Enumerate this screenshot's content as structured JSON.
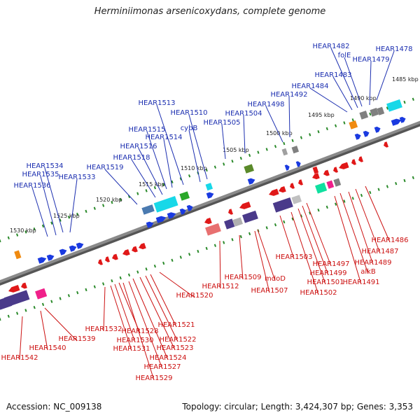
{
  "title": "Herminiimonas arsenicoxydans, complete genome",
  "footer": {
    "accession": "Accession: NC_009138",
    "summary": "Topology: circular; Length: 3,424,307 bp; Genes: 3,353"
  },
  "colors": {
    "top_label": "#1c2fb0",
    "bottom_label": "#cc1111",
    "scale_tick": "#2a8a2a",
    "backbone": "#8a8a8a",
    "forward_gene": "#1a3ae0",
    "reverse_gene": "#e01818",
    "cyan": "#18d8e8",
    "purple": "#4a3a8a",
    "green": "#2aa82a",
    "olive": "#5a8a2a",
    "orange": "#f08a10",
    "gray": "#808080",
    "pink": "#f0208a",
    "teal": "#10e0a0",
    "salmon": "#e87070"
  },
  "scale_labels": [
    "1485 kbp",
    "1490 kbp",
    "1495 kbp",
    "1500 kbp",
    "1505 kbp",
    "1510 kbp",
    "1515 kbp",
    "1520 kbp",
    "1525 kbp",
    "1530 kbp"
  ],
  "top_genes": [
    "HEAR1482",
    "folE",
    "HEAR1478",
    "HEAR1479",
    "HEAR1483",
    "HEAR1484",
    "HEAR1492",
    "HEAR1498",
    "HEAR1504",
    "HEAR1505",
    "HEAR1510",
    "cybB",
    "HEAR1513",
    "HEAR1515",
    "HEAR1514",
    "HEAR1516",
    "HEAR1518",
    "HEAR1519",
    "HEAR1534",
    "HEAR1535",
    "HEAR1536",
    "HEAR1533"
  ],
  "bottom_genes": [
    "HEAR1486",
    "HEAR1487",
    "HEAR1489",
    "alkB",
    "HEAR1491",
    "HEAR1497",
    "HEAR1499",
    "HEAR1501",
    "HEAR1502",
    "HEAR1503",
    "mdoD",
    "HEAR1507",
    "HEAR1509",
    "HEAR1512",
    "HEAR1520",
    "HEAR1521",
    "HEAR1522",
    "HEAR1523",
    "HEAR1524",
    "HEAR1527",
    "HEAR1529",
    "HEAR1528",
    "HEAR1530",
    "HEAR1531",
    "HEAR1532",
    "HEAR1539",
    "HEAR1540",
    "HEAR1542"
  ]
}
